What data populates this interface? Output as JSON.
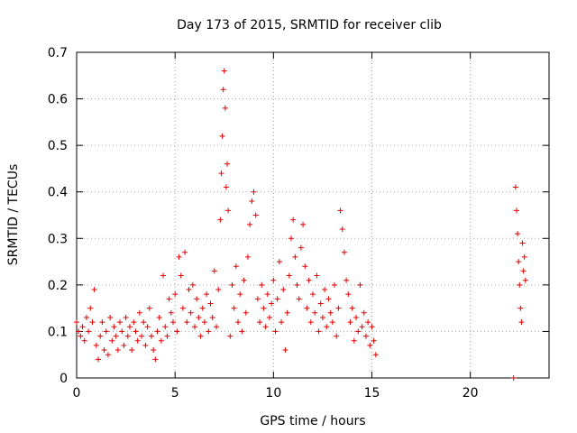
{
  "chart_data": {
    "type": "scatter",
    "title": "Day 173 of 2015, SRMTID for receiver clib",
    "xlabel": "GPS time / hours",
    "ylabel": "SRMTID / TECUs",
    "xlim": [
      0,
      24
    ],
    "ylim": [
      0,
      0.7
    ],
    "xticks": [
      0,
      5,
      10,
      15,
      20
    ],
    "yticks": [
      0,
      0.1,
      0.2,
      0.3,
      0.4,
      0.5,
      0.6,
      0.7
    ],
    "xtick_labels": [
      "0",
      "5",
      "10",
      "15",
      "20"
    ],
    "ytick_labels": [
      "0",
      "0.1",
      "0.2",
      "0.3",
      "0.4",
      "0.5",
      "0.6",
      "0.7"
    ],
    "grid": true,
    "marker": "+",
    "color": "#e00000",
    "series": [
      {
        "name": "SRMTID",
        "points": [
          [
            0.0,
            0.12
          ],
          [
            0.1,
            0.1
          ],
          [
            0.2,
            0.09
          ],
          [
            0.3,
            0.11
          ],
          [
            0.4,
            0.08
          ],
          [
            0.5,
            0.13
          ],
          [
            0.6,
            0.1
          ],
          [
            0.7,
            0.15
          ],
          [
            0.8,
            0.12
          ],
          [
            0.9,
            0.19
          ],
          [
            1.0,
            0.07
          ],
          [
            1.1,
            0.04
          ],
          [
            1.2,
            0.09
          ],
          [
            1.3,
            0.12
          ],
          [
            1.4,
            0.06
          ],
          [
            1.5,
            0.1
          ],
          [
            1.6,
            0.05
          ],
          [
            1.7,
            0.13
          ],
          [
            1.8,
            0.08
          ],
          [
            1.9,
            0.11
          ],
          [
            2.0,
            0.09
          ],
          [
            2.1,
            0.06
          ],
          [
            2.2,
            0.12
          ],
          [
            2.3,
            0.1
          ],
          [
            2.4,
            0.07
          ],
          [
            2.5,
            0.13
          ],
          [
            2.6,
            0.09
          ],
          [
            2.7,
            0.11
          ],
          [
            2.8,
            0.06
          ],
          [
            2.9,
            0.12
          ],
          [
            3.0,
            0.1
          ],
          [
            3.1,
            0.08
          ],
          [
            3.2,
            0.14
          ],
          [
            3.3,
            0.09
          ],
          [
            3.4,
            0.12
          ],
          [
            3.5,
            0.07
          ],
          [
            3.6,
            0.11
          ],
          [
            3.7,
            0.15
          ],
          [
            3.8,
            0.09
          ],
          [
            3.9,
            0.06
          ],
          [
            4.0,
            0.04
          ],
          [
            4.1,
            0.1
          ],
          [
            4.2,
            0.13
          ],
          [
            4.3,
            0.08
          ],
          [
            4.4,
            0.22
          ],
          [
            4.5,
            0.11
          ],
          [
            4.6,
            0.09
          ],
          [
            4.7,
            0.17
          ],
          [
            4.8,
            0.14
          ],
          [
            4.9,
            0.12
          ],
          [
            5.0,
            0.18
          ],
          [
            5.1,
            0.1
          ],
          [
            5.2,
            0.26
          ],
          [
            5.3,
            0.22
          ],
          [
            5.4,
            0.15
          ],
          [
            5.5,
            0.27
          ],
          [
            5.6,
            0.12
          ],
          [
            5.7,
            0.19
          ],
          [
            5.8,
            0.14
          ],
          [
            5.9,
            0.2
          ],
          [
            6.0,
            0.11
          ],
          [
            6.1,
            0.17
          ],
          [
            6.2,
            0.13
          ],
          [
            6.3,
            0.09
          ],
          [
            6.4,
            0.15
          ],
          [
            6.5,
            0.12
          ],
          [
            6.6,
            0.18
          ],
          [
            6.7,
            0.1
          ],
          [
            6.8,
            0.16
          ],
          [
            6.9,
            0.13
          ],
          [
            7.0,
            0.23
          ],
          [
            7.1,
            0.11
          ],
          [
            7.2,
            0.19
          ],
          [
            7.3,
            0.34
          ],
          [
            7.35,
            0.44
          ],
          [
            7.4,
            0.52
          ],
          [
            7.45,
            0.62
          ],
          [
            7.5,
            0.66
          ],
          [
            7.55,
            0.58
          ],
          [
            7.6,
            0.41
          ],
          [
            7.65,
            0.46
          ],
          [
            7.7,
            0.36
          ],
          [
            7.8,
            0.09
          ],
          [
            7.9,
            0.2
          ],
          [
            8.0,
            0.15
          ],
          [
            8.1,
            0.24
          ],
          [
            8.2,
            0.12
          ],
          [
            8.3,
            0.18
          ],
          [
            8.4,
            0.1
          ],
          [
            8.5,
            0.21
          ],
          [
            8.6,
            0.14
          ],
          [
            8.7,
            0.26
          ],
          [
            8.8,
            0.33
          ],
          [
            8.9,
            0.38
          ],
          [
            9.0,
            0.4
          ],
          [
            9.1,
            0.35
          ],
          [
            9.2,
            0.17
          ],
          [
            9.3,
            0.12
          ],
          [
            9.4,
            0.2
          ],
          [
            9.5,
            0.15
          ],
          [
            9.6,
            0.11
          ],
          [
            9.7,
            0.18
          ],
          [
            9.8,
            0.13
          ],
          [
            9.9,
            0.16
          ],
          [
            10.0,
            0.21
          ],
          [
            10.1,
            0.1
          ],
          [
            10.2,
            0.17
          ],
          [
            10.3,
            0.25
          ],
          [
            10.4,
            0.12
          ],
          [
            10.5,
            0.19
          ],
          [
            10.6,
            0.06
          ],
          [
            10.7,
            0.14
          ],
          [
            10.8,
            0.22
          ],
          [
            10.9,
            0.3
          ],
          [
            11.0,
            0.34
          ],
          [
            11.1,
            0.26
          ],
          [
            11.2,
            0.2
          ],
          [
            11.3,
            0.17
          ],
          [
            11.4,
            0.28
          ],
          [
            11.5,
            0.33
          ],
          [
            11.6,
            0.24
          ],
          [
            11.7,
            0.15
          ],
          [
            11.8,
            0.21
          ],
          [
            11.9,
            0.12
          ],
          [
            12.0,
            0.18
          ],
          [
            12.1,
            0.14
          ],
          [
            12.2,
            0.22
          ],
          [
            12.3,
            0.1
          ],
          [
            12.4,
            0.16
          ],
          [
            12.5,
            0.13
          ],
          [
            12.6,
            0.19
          ],
          [
            12.7,
            0.11
          ],
          [
            12.8,
            0.17
          ],
          [
            12.9,
            0.14
          ],
          [
            13.0,
            0.12
          ],
          [
            13.1,
            0.2
          ],
          [
            13.2,
            0.09
          ],
          [
            13.3,
            0.15
          ],
          [
            13.4,
            0.36
          ],
          [
            13.5,
            0.32
          ],
          [
            13.6,
            0.27
          ],
          [
            13.7,
            0.21
          ],
          [
            13.8,
            0.18
          ],
          [
            13.9,
            0.12
          ],
          [
            14.0,
            0.15
          ],
          [
            14.1,
            0.08
          ],
          [
            14.2,
            0.13
          ],
          [
            14.3,
            0.1
          ],
          [
            14.4,
            0.2
          ],
          [
            14.5,
            0.11
          ],
          [
            14.6,
            0.14
          ],
          [
            14.7,
            0.09
          ],
          [
            14.8,
            0.12
          ],
          [
            14.9,
            0.07
          ],
          [
            15.0,
            0.11
          ],
          [
            15.1,
            0.08
          ],
          [
            15.2,
            0.05
          ],
          [
            22.2,
            0.0
          ],
          [
            22.3,
            0.41
          ],
          [
            22.35,
            0.36
          ],
          [
            22.4,
            0.31
          ],
          [
            22.45,
            0.25
          ],
          [
            22.5,
            0.2
          ],
          [
            22.55,
            0.15
          ],
          [
            22.6,
            0.12
          ],
          [
            22.65,
            0.29
          ],
          [
            22.7,
            0.23
          ],
          [
            22.75,
            0.26
          ],
          [
            22.8,
            0.21
          ]
        ]
      }
    ]
  }
}
